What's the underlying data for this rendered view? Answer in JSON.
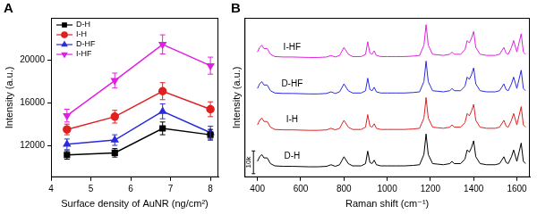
{
  "chart_data": [
    {
      "type": "line",
      "title": "A",
      "x_label": "Surface density of AuNR (ng/cm²)",
      "y_label": "Intensity (a.u.)",
      "x": [
        4.4,
        5.6,
        6.8,
        8
      ],
      "xlim": [
        4,
        8.2
      ],
      "xticks": [
        4,
        5,
        6,
        7,
        8
      ],
      "ylim": [
        9000,
        24000
      ],
      "yticks": [
        12000,
        16000,
        20000
      ],
      "grid": false,
      "legend": "upper left",
      "series": [
        {
          "name": "D-H",
          "color": "#000000",
          "marker": "square",
          "values": [
            11100,
            11300,
            13600,
            13000
          ],
          "errors": [
            400,
            400,
            600,
            500
          ]
        },
        {
          "name": "I-H",
          "color": "#e02020",
          "marker": "circle",
          "values": [
            13500,
            14700,
            17100,
            15400
          ],
          "errors": [
            500,
            600,
            800,
            700
          ]
        },
        {
          "name": "D-HF",
          "color": "#2a2ae0",
          "marker": "triangle",
          "values": [
            12100,
            12500,
            15200,
            13200
          ],
          "errors": [
            500,
            500,
            700,
            600
          ]
        },
        {
          "name": "I-HF",
          "color": "#e020e0",
          "marker": "triangle-down",
          "values": [
            14800,
            18100,
            21500,
            19500
          ],
          "errors": [
            600,
            700,
            900,
            800
          ]
        }
      ]
    },
    {
      "type": "line",
      "title": "B",
      "x_label": "Raman shift (cm⁻¹)",
      "y_label": "Intensity (a.u.)",
      "x": [
        400,
        410,
        420,
        430,
        445,
        460,
        480,
        520,
        560,
        600,
        640,
        680,
        720,
        740,
        760,
        780,
        800,
        820,
        840,
        880,
        900,
        910,
        920,
        930,
        940,
        950,
        970,
        1000,
        1040,
        1080,
        1120,
        1150,
        1170,
        1180,
        1190,
        1210,
        1230,
        1260,
        1290,
        1300,
        1310,
        1340,
        1360,
        1370,
        1380,
        1390,
        1400,
        1410,
        1430,
        1460,
        1500,
        1520,
        1540,
        1550,
        1560,
        1575,
        1585,
        1600,
        1610,
        1620,
        1630,
        1640
      ],
      "xlim": [
        340,
        1660
      ],
      "xticks": [
        400,
        600,
        800,
        1000,
        1200,
        1400,
        1600
      ],
      "ylim": [
        0,
        70000
      ],
      "tick_labels": "x",
      "grid": false,
      "scale_bar": {
        "value": 10000,
        "label": "10k"
      },
      "series": [
        {
          "name": "D-H",
          "color": "#000000",
          "values": [
            7000,
            9000,
            10000,
            8500,
            8500,
            6000,
            5000,
            4800,
            4800,
            4700,
            4600,
            4600,
            4800,
            5500,
            4800,
            5500,
            9000,
            6000,
            5000,
            5000,
            6000,
            11500,
            6500,
            6000,
            7500,
            5500,
            5000,
            5000,
            5000,
            5000,
            5200,
            5500,
            10000,
            19000,
            10000,
            6000,
            5800,
            5500,
            6000,
            7000,
            6000,
            6000,
            8000,
            12000,
            11000,
            13000,
            16000,
            9000,
            6000,
            5500,
            5500,
            6000,
            9000,
            6500,
            6000,
            9000,
            12000,
            7000,
            11000,
            15000,
            7000,
            6000
          ]
        },
        {
          "name": "I-H",
          "color": "#e02020",
          "values": [
            23000,
            25000,
            26000,
            24500,
            24500,
            22000,
            21000,
            20800,
            20800,
            20700,
            20600,
            20600,
            20800,
            21500,
            20800,
            21500,
            25000,
            22000,
            21000,
            21000,
            22000,
            27500,
            22500,
            22000,
            23500,
            21500,
            21000,
            21000,
            21000,
            21000,
            21200,
            21500,
            26000,
            35000,
            26000,
            22000,
            21800,
            21500,
            22000,
            23000,
            22000,
            22000,
            24000,
            28000,
            27000,
            29000,
            32000,
            25000,
            22000,
            21500,
            21500,
            22000,
            25000,
            22500,
            22000,
            25000,
            28000,
            23000,
            27000,
            31000,
            23000,
            22000
          ]
        },
        {
          "name": "D-HF",
          "color": "#2a2ae0",
          "values": [
            39000,
            41000,
            42000,
            40500,
            40500,
            38000,
            37000,
            36800,
            36800,
            36700,
            36600,
            36600,
            36800,
            37500,
            36800,
            37500,
            41000,
            38000,
            37000,
            37000,
            38000,
            43500,
            38500,
            38000,
            39500,
            37500,
            37000,
            37000,
            37000,
            37000,
            37200,
            37500,
            42000,
            51000,
            42000,
            38000,
            37800,
            37500,
            38000,
            39000,
            38000,
            38000,
            40000,
            44000,
            43000,
            45000,
            48000,
            41000,
            38000,
            37500,
            37500,
            38000,
            41000,
            38500,
            38000,
            41000,
            44000,
            39000,
            43000,
            47000,
            39000,
            38000
          ]
        },
        {
          "name": "I-HF",
          "color": "#e020e0",
          "values": [
            55000,
            57000,
            58000,
            56500,
            56500,
            54000,
            53000,
            52800,
            52800,
            52700,
            52600,
            52600,
            52800,
            53500,
            52800,
            53500,
            57000,
            54000,
            53000,
            53000,
            54000,
            59500,
            54500,
            54000,
            55500,
            53500,
            53000,
            53000,
            53000,
            53000,
            53200,
            53500,
            58000,
            67000,
            58000,
            54000,
            53800,
            53500,
            54000,
            55000,
            54000,
            54000,
            56000,
            60000,
            59000,
            61000,
            64000,
            57000,
            54000,
            53500,
            53500,
            54000,
            57000,
            54500,
            54000,
            57000,
            60000,
            55000,
            59000,
            63000,
            55000,
            54000
          ]
        }
      ]
    }
  ]
}
